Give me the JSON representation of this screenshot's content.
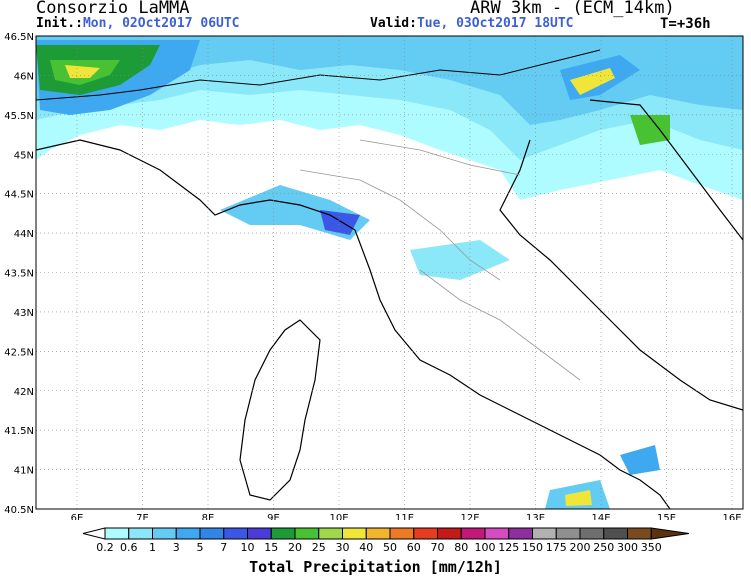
{
  "header": {
    "org": "Consorzio LaMMA",
    "model": "ARW 3km - (ECM_14km)",
    "init_label": "Init.:",
    "init_value": "Mon, 02Oct2017 06UTC",
    "valid_label": "Valid:",
    "valid_value": "Tue, 03Oct2017 18UTC",
    "step": "T=+36h"
  },
  "map": {
    "lon_labels": [
      "6E",
      "7E",
      "8E",
      "9E",
      "10E",
      "11E",
      "12E",
      "13E",
      "14E",
      "15E",
      "16E"
    ],
    "lat_labels": [
      "46.5N",
      "46N",
      "45.5N",
      "45N",
      "44.5N",
      "44N",
      "43.5N",
      "43N",
      "42.5N",
      "42N",
      "41.5N",
      "41N",
      "40.5N"
    ],
    "ocean_color": "#ffffff",
    "border_color": "#000000",
    "internal_border_color": "#999999",
    "grid_color": "#888888"
  },
  "colorbar": {
    "title": "Total Precipitation [mm/12h]",
    "labels": [
      "0.2",
      "0.6",
      "1",
      "3",
      "5",
      "7",
      "10",
      "15",
      "20",
      "25",
      "30",
      "40",
      "50",
      "60",
      "70",
      "80",
      "100",
      "125",
      "150",
      "175",
      "200",
      "250",
      "300",
      "350"
    ],
    "colors": [
      "#aefcff",
      "#8ae8f8",
      "#64cbf3",
      "#3ea9f0",
      "#2f86e6",
      "#3b57e5",
      "#4b3cd8",
      "#1c9b37",
      "#48c232",
      "#9fd84a",
      "#f0e63a",
      "#f3b52d",
      "#ef7a25",
      "#e63c1f",
      "#c51a1a",
      "#c21878",
      "#d54cc0",
      "#8d2f9e",
      "#b1b1b1",
      "#8f8f8f",
      "#6f6f6f",
      "#505050",
      "#7a4b1e",
      "#5a3210"
    ]
  }
}
